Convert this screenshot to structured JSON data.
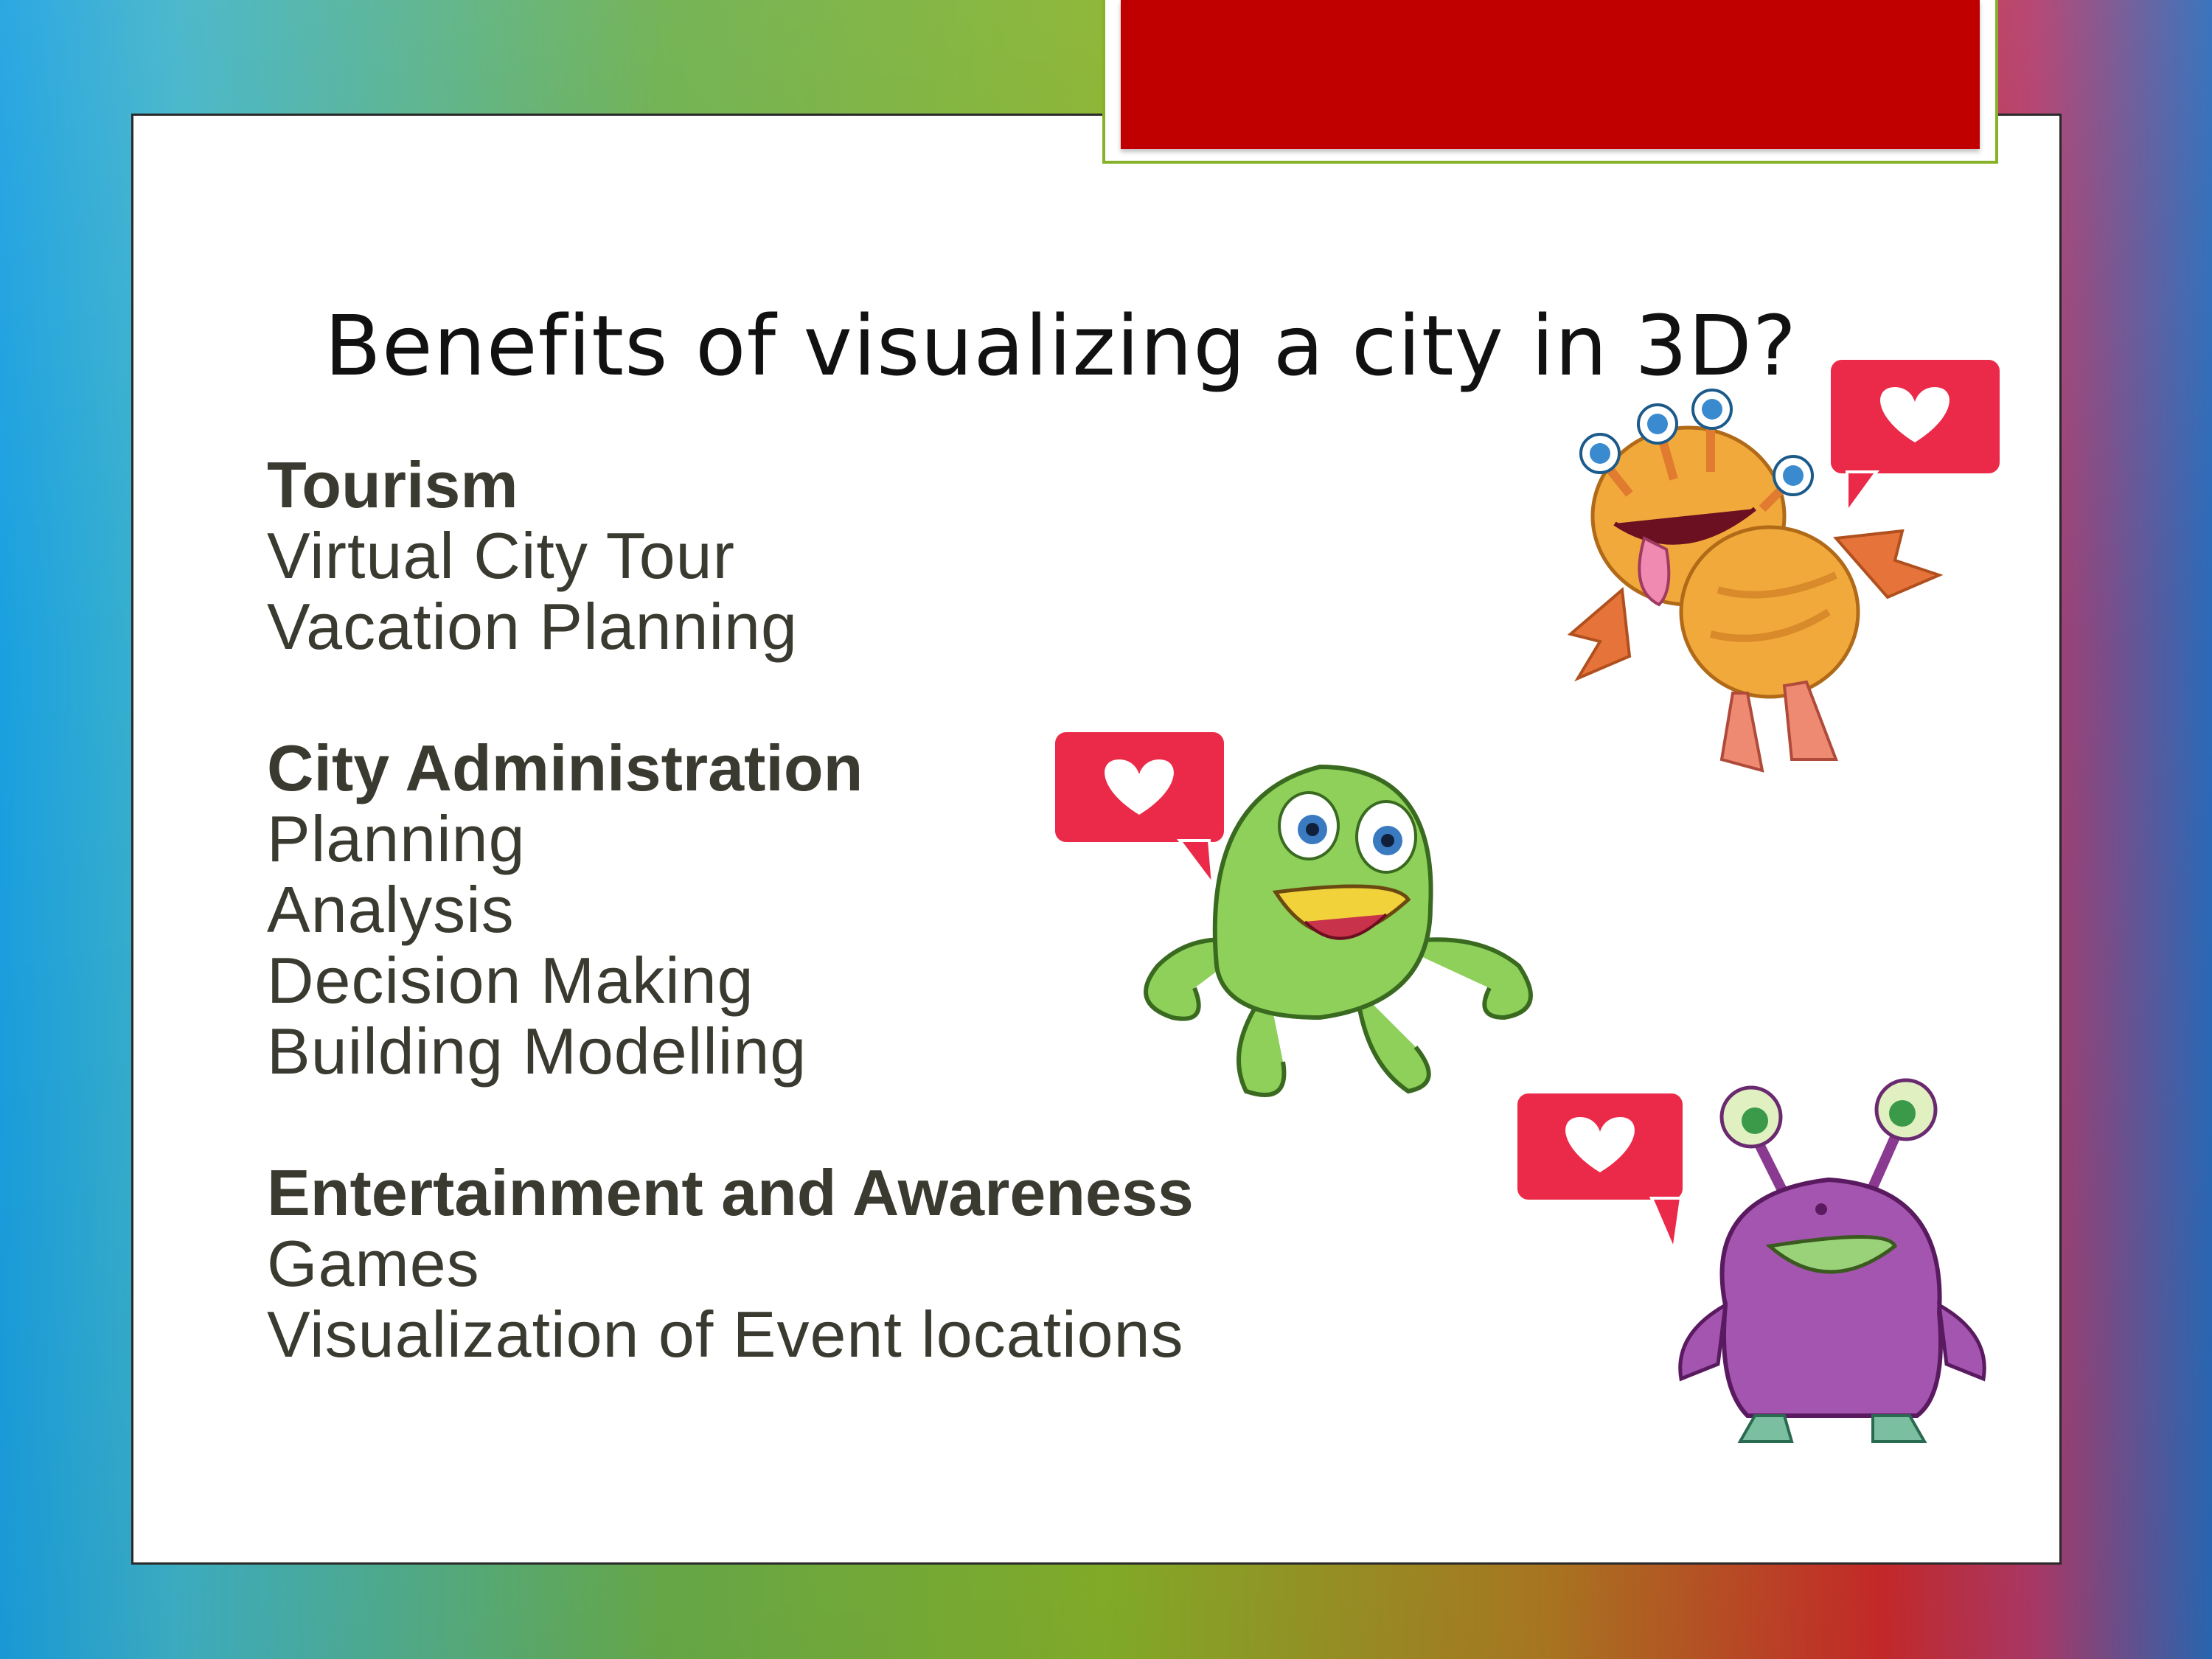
{
  "slide": {
    "title": "Benefits of visualizing a city in 3D?",
    "sections": [
      {
        "heading": "Tourism",
        "items": [
          "Virtual City Tour",
          "Vacation Planning"
        ]
      },
      {
        "heading": "City Administration",
        "items": [
          "Planning",
          "Analysis",
          "Decision Making",
          "Building Modelling"
        ]
      },
      {
        "heading": "Entertainment and Awareness",
        "items": [
          "Games",
          "Visualization of Event locations"
        ]
      }
    ]
  },
  "colors": {
    "accent_red": "#c00000",
    "accent_green": "#86b22a",
    "text": "#3a3a30",
    "heart_bubble": "#ea2a48"
  },
  "icons": [
    "heart-icon",
    "orange-monster-illustration",
    "green-octopus-monster-illustration",
    "purple-monster-illustration"
  ]
}
